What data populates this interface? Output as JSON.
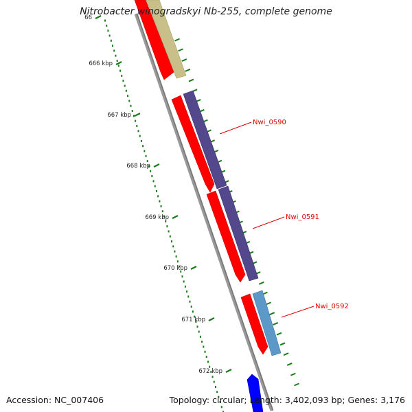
{
  "title": "Nitrobacter winogradskyi Nb-255, complete genome",
  "footer": {
    "accession": "Accession: NC_007406",
    "stats": "Topology: circular; Length: 3,402,093 bp; Genes: 3,176"
  },
  "colors": {
    "forward_cds": "#ff0000",
    "backbone": "#888888",
    "ticks": "#1a7a1a",
    "label": "#e00000",
    "gene_olive": "#c8c088",
    "gene_purple": "#54488c",
    "gene_steelblue": "#5c98c8",
    "gene_blue": "#0000ff"
  },
  "ticks": [
    {
      "label": "66"
    },
    {
      "label": "666 kbp"
    },
    {
      "label": "667 kbp"
    },
    {
      "label": "668 kbp"
    },
    {
      "label": "669 kbp"
    },
    {
      "label": "670 kbp"
    },
    {
      "label": "671 kbp"
    },
    {
      "label": "672 kbp"
    }
  ],
  "genes": [
    {
      "name": "Nwi_0590"
    },
    {
      "name": "Nwi_0591"
    },
    {
      "name": "Nwi_0592"
    }
  ]
}
